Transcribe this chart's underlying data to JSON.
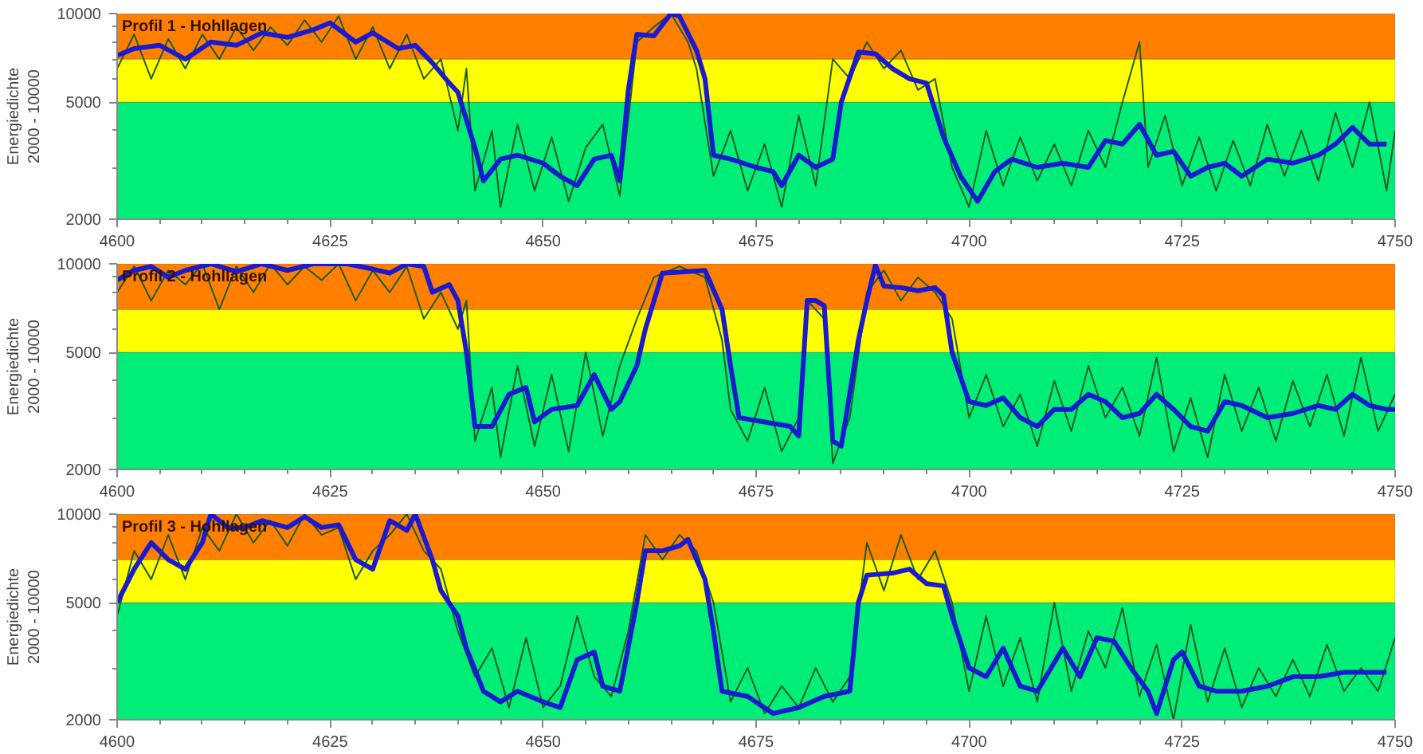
{
  "chart_data": [
    {
      "type": "line",
      "title": "Profil 1 - Hohllagen",
      "ylabel": "Energiedichte\n2000 - 10000",
      "log": true,
      "xlim": [
        4600,
        4750
      ],
      "xticks": [
        4600,
        4625,
        4650,
        4675,
        4700,
        4725,
        4750
      ],
      "ylim": [
        2000,
        10000
      ],
      "yticks": [
        2000,
        5000,
        10000
      ],
      "bands": [
        {
          "axis": "y",
          "from": 2000,
          "to": 5000,
          "color": "#00ee77"
        },
        {
          "axis": "y",
          "from": 5000,
          "to": 7000,
          "color": "#ffff00"
        },
        {
          "axis": "y",
          "from": 7000,
          "to": 10000,
          "color": "#ff8000"
        }
      ],
      "series": [
        {
          "color": "#1f5a1f",
          "x": [
            4600,
            4602,
            4604,
            4606,
            4608,
            4610,
            4612,
            4614,
            4616,
            4618,
            4620,
            4622,
            4624,
            4626,
            4628,
            4630,
            4632,
            4634,
            4636,
            4638,
            4640,
            4641,
            4642,
            4644,
            4645,
            4647,
            4649,
            4651,
            4653,
            4655,
            4657,
            4659,
            4661,
            4663,
            4665,
            4667,
            4668,
            4670,
            4672,
            4674,
            4676,
            4678,
            4680,
            4682,
            4684,
            4686,
            4688,
            4690,
            4692,
            4694,
            4696,
            4698,
            4700,
            4702,
            4704,
            4706,
            4708,
            4710,
            4712,
            4714,
            4716,
            4718,
            4720,
            4721,
            4723,
            4725,
            4727,
            4729,
            4731,
            4733,
            4735,
            4737,
            4739,
            4741,
            4743,
            4745,
            4747,
            4749,
            4750
          ],
          "values": [
            6500,
            8500,
            6000,
            8200,
            6500,
            8500,
            7000,
            9000,
            7500,
            9000,
            7800,
            9500,
            8000,
            9800,
            7000,
            9000,
            6500,
            8500,
            6000,
            7000,
            4000,
            6500,
            2500,
            4000,
            2200,
            4200,
            2500,
            3800,
            2300,
            3500,
            4200,
            2400,
            8000,
            9000,
            10000,
            8000,
            6500,
            2800,
            4000,
            2500,
            3600,
            2200,
            4500,
            2600,
            7000,
            6000,
            8000,
            6500,
            7500,
            5500,
            6000,
            3000,
            2200,
            4000,
            2600,
            3800,
            2700,
            3600,
            2600,
            4000,
            3000,
            5000,
            8000,
            3000,
            4500,
            2600,
            3800,
            2500,
            3700,
            2600,
            4200,
            2800,
            4000,
            2700,
            4600,
            3000,
            5000,
            2500,
            4000
          ]
        },
        {
          "color": "#1a1ad0",
          "x": [
            4600,
            4602,
            4605,
            4608,
            4611,
            4614,
            4617,
            4620,
            4623,
            4625,
            4628,
            4630,
            4633,
            4635,
            4637,
            4639,
            4640,
            4642,
            4643,
            4645,
            4647,
            4650,
            4652,
            4654,
            4656,
            4658,
            4659,
            4660,
            4661,
            4663,
            4665,
            4666,
            4668,
            4669,
            4670,
            4672,
            4675,
            4677,
            4678,
            4680,
            4682,
            4684,
            4685,
            4687,
            4689,
            4691,
            4693,
            4695,
            4697,
            4699,
            4701,
            4703,
            4705,
            4708,
            4711,
            4714,
            4716,
            4718,
            4720,
            4722,
            4724,
            4726,
            4728,
            4730,
            4732,
            4735,
            4738,
            4741,
            4743,
            4745,
            4747,
            4749
          ],
          "values": [
            7200,
            7600,
            7800,
            7000,
            8000,
            7800,
            8600,
            8300,
            8800,
            9300,
            8000,
            8600,
            7600,
            7800,
            6800,
            5800,
            5400,
            3500,
            2700,
            3200,
            3300,
            3100,
            2800,
            2600,
            3200,
            3300,
            2700,
            5500,
            8500,
            8400,
            10000,
            9800,
            7500,
            6000,
            3300,
            3200,
            3000,
            2900,
            2600,
            3300,
            3000,
            3200,
            5000,
            7400,
            7300,
            6500,
            6000,
            5800,
            3800,
            2800,
            2300,
            2900,
            3200,
            3000,
            3100,
            3000,
            3700,
            3600,
            4200,
            3300,
            3400,
            2800,
            3000,
            3100,
            2800,
            3200,
            3100,
            3300,
            3600,
            4100,
            3600,
            3600
          ]
        }
      ]
    },
    {
      "type": "line",
      "title": "Profil 2 - Hohllagen",
      "ylabel": "Energiedichte\n2000 - 10000",
      "log": true,
      "xlim": [
        4600,
        4750
      ],
      "xticks": [
        4600,
        4625,
        4650,
        4675,
        4700,
        4725,
        4750
      ],
      "ylim": [
        2000,
        10000
      ],
      "yticks": [
        2000,
        5000,
        10000
      ],
      "bands": [
        {
          "axis": "y",
          "from": 2000,
          "to": 5000,
          "color": "#00ee77"
        },
        {
          "axis": "y",
          "from": 5000,
          "to": 7000,
          "color": "#ffff00"
        },
        {
          "axis": "y",
          "from": 7000,
          "to": 10000,
          "color": "#ff8000"
        }
      ],
      "series": [
        {
          "color": "#1f5a1f",
          "x": [
            4600,
            4602,
            4604,
            4606,
            4608,
            4610,
            4612,
            4614,
            4616,
            4618,
            4620,
            4622,
            4624,
            4626,
            4628,
            4630,
            4632,
            4634,
            4636,
            4638,
            4640,
            4641,
            4642,
            4644,
            4645,
            4647,
            4649,
            4651,
            4653,
            4655,
            4657,
            4659,
            4661,
            4663,
            4666,
            4669,
            4671,
            4672,
            4674,
            4676,
            4678,
            4680,
            4681,
            4683,
            4684,
            4686,
            4688,
            4690,
            4692,
            4694,
            4696,
            4698,
            4700,
            4702,
            4704,
            4706,
            4708,
            4710,
            4712,
            4714,
            4716,
            4718,
            4720,
            4722,
            4724,
            4726,
            4728,
            4730,
            4732,
            4734,
            4736,
            4738,
            4740,
            4742,
            4744,
            4746,
            4748,
            4750
          ],
          "values": [
            8000,
            9800,
            7500,
            9500,
            8500,
            10000,
            7000,
            9800,
            8000,
            10000,
            8500,
            9800,
            8800,
            10000,
            7500,
            9500,
            8000,
            9800,
            6500,
            8000,
            6000,
            7500,
            2500,
            3800,
            2200,
            4500,
            2400,
            4200,
            2300,
            5000,
            2600,
            4500,
            6500,
            9000,
            9800,
            9000,
            5500,
            3200,
            2500,
            3800,
            2300,
            3000,
            7500,
            6500,
            2100,
            3000,
            8000,
            9500,
            7500,
            9000,
            8000,
            6500,
            3000,
            4200,
            2800,
            3600,
            2400,
            4000,
            2700,
            4500,
            3000,
            3800,
            2600,
            4800,
            2300,
            3500,
            2200,
            4200,
            2700,
            3800,
            2500,
            4000,
            2800,
            4200,
            2600,
            4800,
            2700,
            3600
          ]
        },
        {
          "color": "#1a1ad0",
          "x": [
            4600,
            4602,
            4604,
            4606,
            4608,
            4611,
            4614,
            4617,
            4620,
            4623,
            4627,
            4630,
            4632,
            4634,
            4636,
            4637,
            4639,
            4640,
            4641,
            4642,
            4644,
            4646,
            4648,
            4649,
            4651,
            4654,
            4656,
            4658,
            4659,
            4661,
            4662,
            4664,
            4669,
            4671,
            4672,
            4673,
            4676,
            4679,
            4680,
            4681,
            4682,
            4683,
            4684,
            4685,
            4687,
            4688,
            4689,
            4690,
            4692,
            4694,
            4696,
            4697,
            4698,
            4700,
            4702,
            4704,
            4706,
            4708,
            4710,
            4712,
            4714,
            4716,
            4718,
            4720,
            4722,
            4724,
            4726,
            4728,
            4730,
            4732,
            4735,
            4738,
            4741,
            4743,
            4745,
            4747,
            4749,
            4750
          ],
          "values": [
            8800,
            9500,
            9800,
            9000,
            9500,
            10000,
            9400,
            10000,
            9500,
            10000,
            10000,
            9600,
            9300,
            10000,
            9800,
            8000,
            8500,
            7500,
            5000,
            2800,
            2800,
            3600,
            3800,
            2900,
            3200,
            3300,
            4200,
            3200,
            3400,
            4500,
            6000,
            9300,
            9500,
            7000,
            4500,
            3000,
            2900,
            2800,
            2600,
            7500,
            7500,
            7200,
            2500,
            2400,
            5500,
            7500,
            9900,
            8400,
            8300,
            8100,
            8300,
            7800,
            5000,
            3400,
            3300,
            3500,
            3000,
            2800,
            3200,
            3200,
            3600,
            3400,
            3000,
            3100,
            3600,
            3200,
            2800,
            2700,
            3400,
            3300,
            3000,
            3100,
            3300,
            3200,
            3600,
            3300,
            3200,
            3200
          ]
        }
      ]
    },
    {
      "type": "line",
      "title": "Profil 3 - Hohllagen",
      "ylabel": "Energiedichte\n2000 - 10000",
      "log": true,
      "xlim": [
        4600,
        4750
      ],
      "xticks": [
        4600,
        4625,
        4650,
        4675,
        4700,
        4725,
        4750
      ],
      "ylim": [
        2000,
        10000
      ],
      "yticks": [
        2000,
        5000,
        10000
      ],
      "bands": [
        {
          "axis": "y",
          "from": 2000,
          "to": 5000,
          "color": "#00ee77"
        },
        {
          "axis": "y",
          "from": 5000,
          "to": 7000,
          "color": "#ffff00"
        },
        {
          "axis": "y",
          "from": 7000,
          "to": 10000,
          "color": "#ff8000"
        }
      ],
      "series": [
        {
          "color": "#1f5a1f",
          "x": [
            4600,
            4602,
            4604,
            4606,
            4608,
            4610,
            4612,
            4614,
            4616,
            4618,
            4620,
            4622,
            4624,
            4626,
            4628,
            4630,
            4632,
            4634,
            4636,
            4638,
            4640,
            4642,
            4644,
            4646,
            4648,
            4650,
            4652,
            4654,
            4656,
            4658,
            4660,
            4662,
            4664,
            4666,
            4668,
            4670,
            4672,
            4674,
            4676,
            4678,
            4680,
            4682,
            4684,
            4686,
            4688,
            4690,
            4692,
            4694,
            4696,
            4698,
            4700,
            4702,
            4704,
            4706,
            4708,
            4710,
            4712,
            4714,
            4716,
            4718,
            4720,
            4722,
            4724,
            4726,
            4728,
            4730,
            4732,
            4734,
            4736,
            4738,
            4740,
            4742,
            4744,
            4746,
            4748,
            4750
          ],
          "values": [
            4500,
            7500,
            6000,
            8500,
            6000,
            9000,
            7500,
            10000,
            8000,
            9500,
            7800,
            10000,
            8500,
            9000,
            6000,
            7500,
            8500,
            10000,
            7500,
            6500,
            4000,
            2800,
            3500,
            2200,
            3800,
            2200,
            2600,
            4500,
            2800,
            2400,
            4000,
            8500,
            7000,
            8500,
            7500,
            5000,
            2300,
            3000,
            2100,
            2600,
            2200,
            3000,
            2300,
            2800,
            8000,
            5500,
            8500,
            6000,
            7500,
            5000,
            2500,
            4500,
            2600,
            3800,
            2300,
            5000,
            2500,
            4000,
            3000,
            4800,
            2400,
            3600,
            2000,
            4200,
            2300,
            3500,
            2200,
            3000,
            2400,
            3200,
            2400,
            3600,
            2500,
            3000,
            2500,
            3800
          ]
        },
        {
          "color": "#1a1ad0",
          "x": [
            4600,
            4602,
            4604,
            4606,
            4608,
            4610,
            4611,
            4613,
            4615,
            4617,
            4620,
            4622,
            4624,
            4626,
            4628,
            4630,
            4632,
            4634,
            4635,
            4637,
            4638,
            4640,
            4641,
            4643,
            4645,
            4647,
            4650,
            4652,
            4654,
            4656,
            4657,
            4659,
            4661,
            4662,
            4664,
            4666,
            4667,
            4669,
            4670,
            4671,
            4674,
            4677,
            4680,
            4683,
            4686,
            4687,
            4688,
            4691,
            4693,
            4695,
            4697,
            4698,
            4700,
            4702,
            4704,
            4706,
            4708,
            4711,
            4713,
            4715,
            4717,
            4719,
            4721,
            4722,
            4724,
            4725,
            4727,
            4729,
            4732,
            4735,
            4738,
            4741,
            4744,
            4747,
            4749
          ],
          "values": [
            5000,
            6500,
            8000,
            7000,
            6500,
            8000,
            10000,
            9000,
            9000,
            9500,
            9000,
            9800,
            9000,
            9200,
            7000,
            6500,
            9500,
            8800,
            10000,
            7000,
            5500,
            4500,
            3500,
            2500,
            2300,
            2500,
            2300,
            2200,
            3200,
            3400,
            2600,
            2500,
            5000,
            7500,
            7500,
            7800,
            8200,
            6000,
            4000,
            2500,
            2400,
            2100,
            2200,
            2400,
            2500,
            5000,
            6200,
            6300,
            6500,
            5800,
            5700,
            4500,
            3000,
            2800,
            3500,
            2600,
            2500,
            3500,
            2800,
            3800,
            3700,
            3000,
            2500,
            2100,
            3200,
            3400,
            2600,
            2500,
            2500,
            2600,
            2800,
            2800,
            2900,
            2900,
            2900
          ]
        }
      ]
    }
  ]
}
